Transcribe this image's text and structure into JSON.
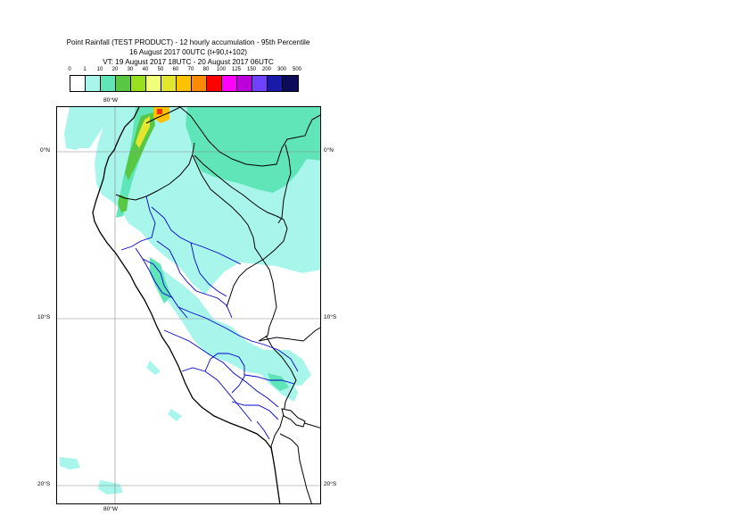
{
  "header": {
    "line1": "Point Rainfall (TEST PRODUCT) - 12 hourly accumulation - 95th Percentile",
    "line2": "16 August 2017 00UTC (t+90,t+102)",
    "line3": "VT: 19 August 2017 18UTC - 20 August 2017 06UTC"
  },
  "legend": {
    "thresholds": [
      "0",
      "1",
      "10",
      "20",
      "30",
      "40",
      "50",
      "60",
      "70",
      "80",
      "100",
      "125",
      "150",
      "200",
      "300",
      "500"
    ],
    "colors": [
      "#ffffff",
      "#a8f5ec",
      "#5fe5b8",
      "#58c844",
      "#99e01c",
      "#f2ff7a",
      "#e2e62e",
      "#ffc200",
      "#ff8a00",
      "#ff0000",
      "#ff00ff",
      "#bc00dc",
      "#7040ff",
      "#1a1aa8",
      "#0c0c5a"
    ]
  },
  "map": {
    "lon_top": "80°W",
    "lon_bottom": "80°W",
    "lat_0_left": "0°N",
    "lat_0_right": "0°N",
    "lat_10_left": "10°S",
    "lat_10_right": "10°S",
    "lat_20_left": "20°S",
    "lat_20_right": "20°S"
  },
  "colors": {
    "light_rain": "#a8f5ec",
    "moderate_rain": "#5fe5b8",
    "coastline": "#000000",
    "country_border": "#000000",
    "region_border": "#0000cc",
    "gridline": "#888888"
  }
}
